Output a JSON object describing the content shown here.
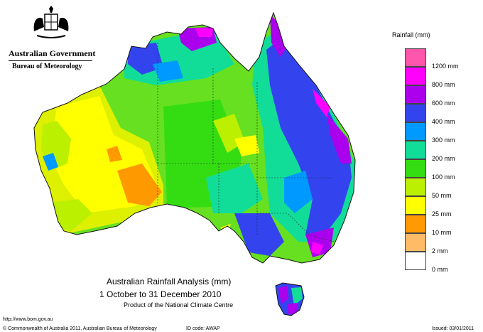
{
  "logo": {
    "government": "Australian Government",
    "bureau": "Bureau of Meteorology"
  },
  "legend": {
    "title": "Rainfall (mm)",
    "bands": [
      {
        "label": "",
        "color": "#ff55aa"
      },
      {
        "label": "1200 mm",
        "color": "#ff00ff"
      },
      {
        "label": "800 mm",
        "color": "#aa00ee"
      },
      {
        "label": "600 mm",
        "color": "#3344ee"
      },
      {
        "label": "400 mm",
        "color": "#0099ff"
      },
      {
        "label": "300 mm",
        "color": "#11dd99"
      },
      {
        "label": "200 mm",
        "color": "#33dd11"
      },
      {
        "label": "100 mm",
        "color": "#bbf000"
      },
      {
        "label": "50 mm",
        "color": "#ffff00"
      },
      {
        "label": "25 mm",
        "color": "#ff9900"
      },
      {
        "label": "10 mm",
        "color": "#ffbb66"
      },
      {
        "label": "2 mm",
        "color": "#ffffff"
      },
      {
        "label": "0 mm",
        "color": ""
      }
    ]
  },
  "caption": {
    "title": "Australian Rainfall Analysis (mm)",
    "period": "1 October to 31 December 2010",
    "product": "Product of the National Climate Centre"
  },
  "footer": {
    "url": "http://www.bom.gov.au",
    "copyright": "© Commonwealth of Australia 2011, Australian Bureau of Meteorology",
    "id_code": "ID code: AWAP",
    "issued": "Issued: 03/01/2011"
  }
}
